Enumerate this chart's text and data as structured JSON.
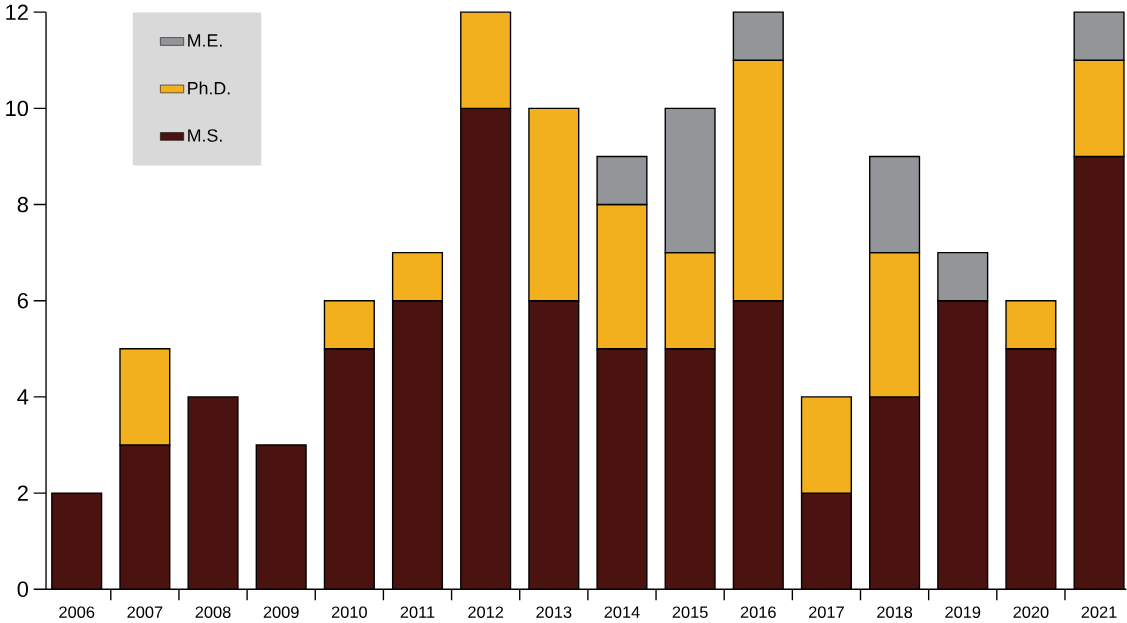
{
  "chart_data": {
    "type": "bar",
    "stacked": true,
    "categories": [
      "2006",
      "2007",
      "2008",
      "2009",
      "2010",
      "2011",
      "2012",
      "2013",
      "2014",
      "2015",
      "2016",
      "2017",
      "2018",
      "2019",
      "2020",
      "2021"
    ],
    "series": [
      {
        "name": "M.S.",
        "color": "#4a1310",
        "values": [
          2,
          3,
          4,
          3,
          5,
          6,
          10,
          6,
          5,
          5,
          6,
          2,
          4,
          6,
          5,
          9
        ]
      },
      {
        "name": "Ph.D.",
        "color": "#f2b01e",
        "values": [
          0,
          2,
          0,
          0,
          1,
          1,
          2,
          4,
          3,
          2,
          5,
          2,
          3,
          0,
          1,
          2
        ]
      },
      {
        "name": "M.E.",
        "color": "#939598",
        "values": [
          0,
          0,
          0,
          0,
          0,
          0,
          0,
          0,
          1,
          3,
          1,
          0,
          2,
          1,
          0,
          1
        ]
      }
    ],
    "ylim": [
      0,
      12
    ],
    "yticks": [
      0,
      2,
      4,
      6,
      8,
      10,
      12
    ],
    "grid": false,
    "legend": "top left"
  }
}
